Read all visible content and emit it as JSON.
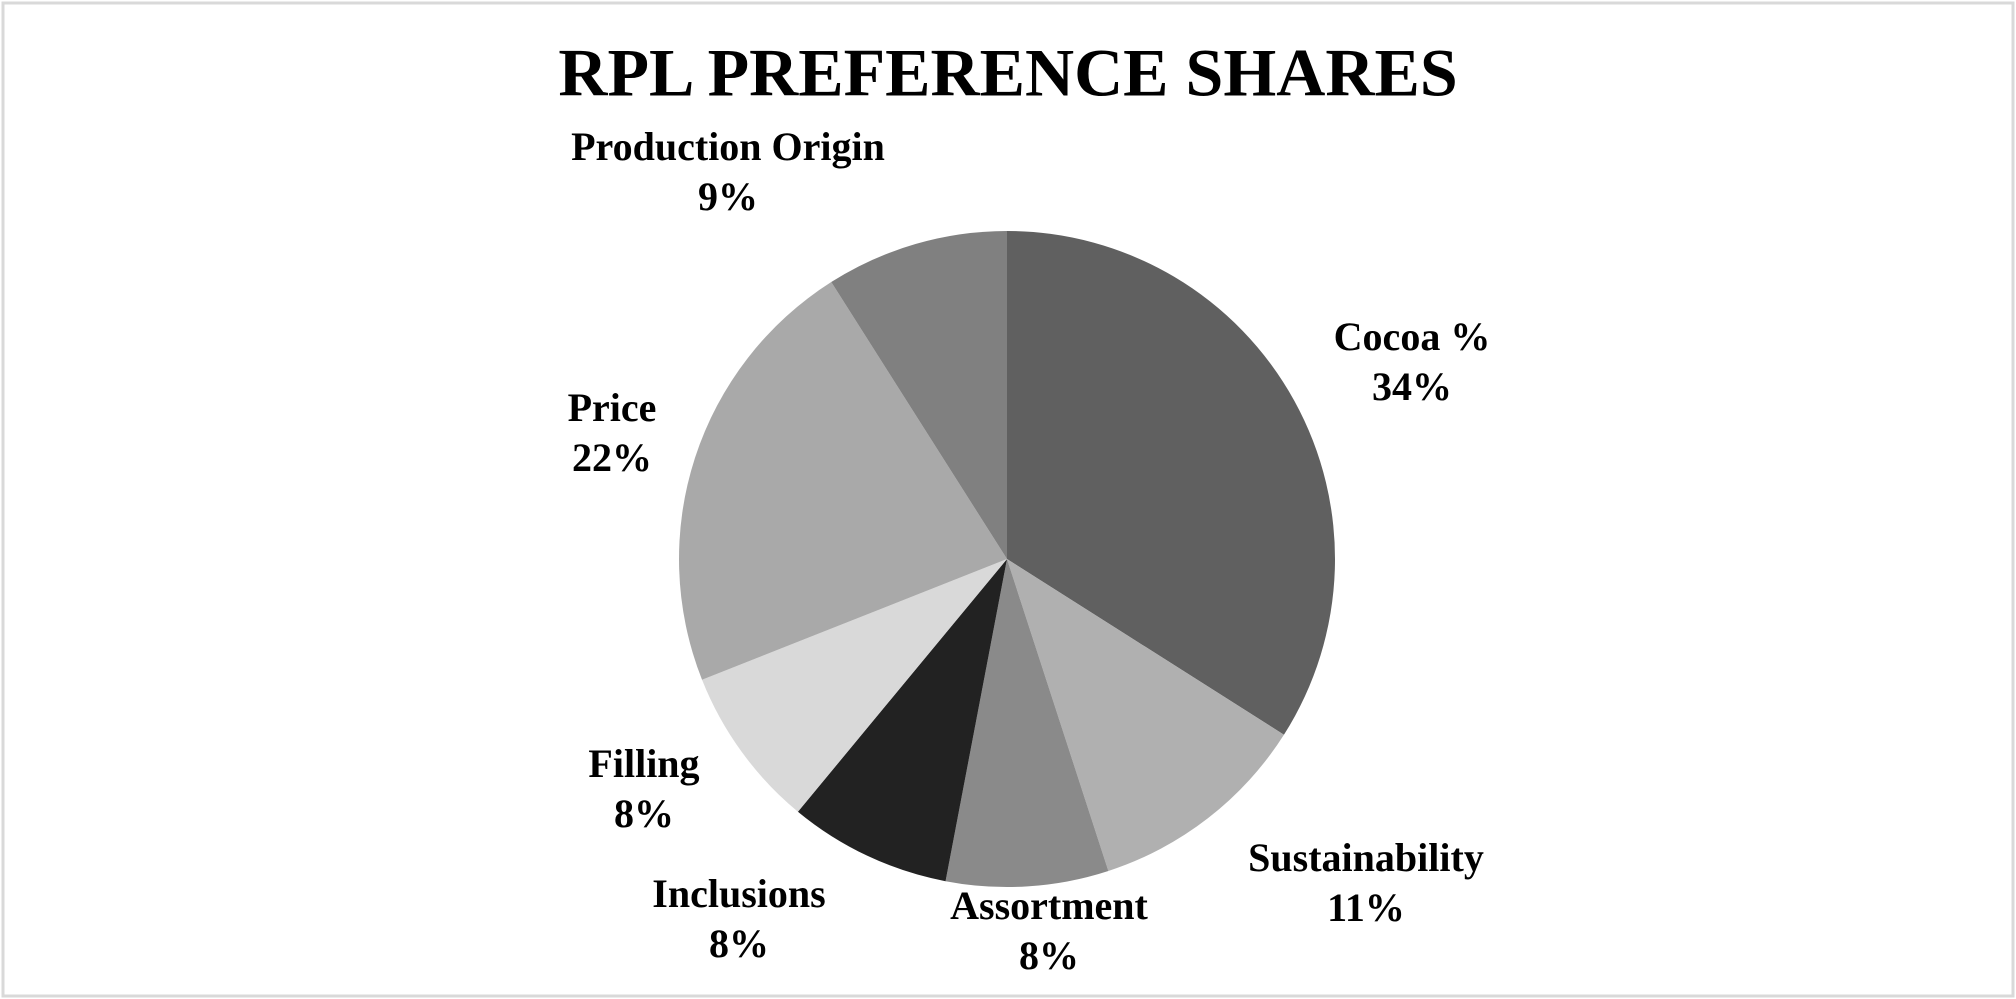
{
  "chart_data": {
    "type": "pie",
    "title": "RPL PREFERENCE SHARES",
    "categories": [
      "Cocoa %",
      "Sustainability",
      "Assortment",
      "Inclusions",
      "Filling",
      "Price",
      "Production Origin"
    ],
    "values": [
      34,
      11,
      8,
      8,
      8,
      22,
      9
    ],
    "value_labels": [
      "34%",
      "11%",
      "8%",
      "8%",
      "8%",
      "22%",
      "9%"
    ],
    "colors": [
      "#606060",
      "#b0b0b0",
      "#8a8a8a",
      "#222222",
      "#d9d9d9",
      "#a9a9a9",
      "#808080"
    ]
  }
}
